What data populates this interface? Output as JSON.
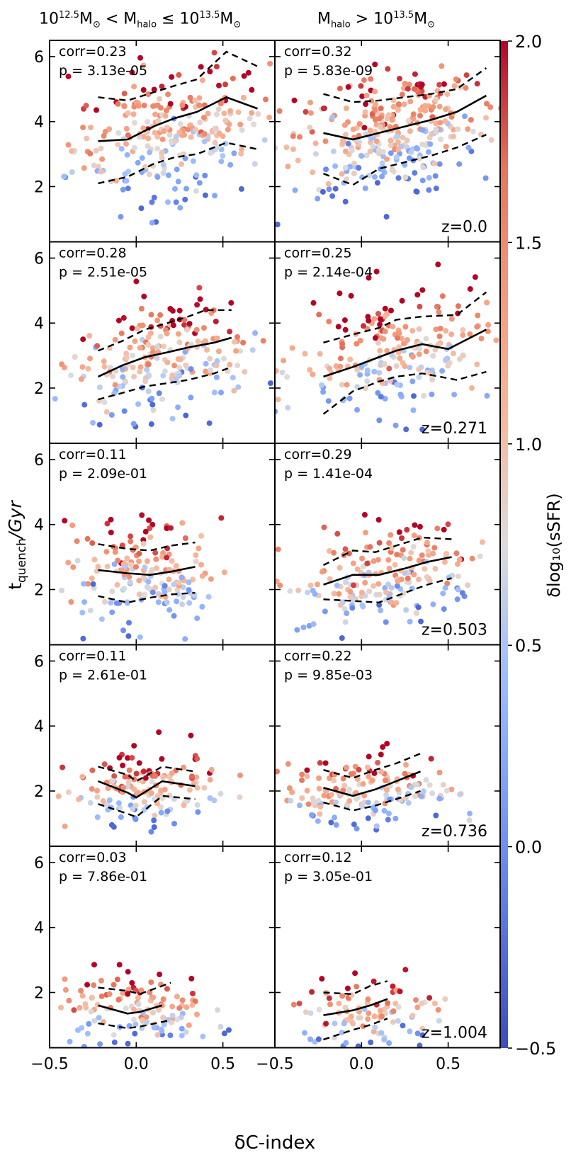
{
  "figure": {
    "column_titles": [
      {
        "pre": "10",
        "sup1": "12.5",
        "mid1": "M",
        "sub1": "⊙",
        "mid2": " < M",
        "sub2": "halo",
        "mid3": " ≤ 10",
        "sup2": "13.5",
        "mid4": "M",
        "sub3": "⊙"
      },
      {
        "pre": "M",
        "sub1": "halo",
        "mid1": " > 10",
        "sup1": "13.5",
        "mid2": "M",
        "sub2": "⊙"
      }
    ],
    "xlabel": "δC-index",
    "ylabel_main": "t",
    "ylabel_sub": "quench",
    "ylabel_tail": "/Gyr",
    "colorbar_label": "δlog₁₀(sSFR)"
  },
  "chart_data": {
    "type": "scatter",
    "layout": "5 rows x 2 columns",
    "xlim": [
      -0.5,
      0.8
    ],
    "ylim": [
      0.3,
      6.5
    ],
    "xticks": [
      -0.5,
      0.0,
      0.5
    ],
    "xtick_labels": [
      "−0.5",
      "0.0",
      "0.5"
    ],
    "yticks": [
      2,
      4,
      6
    ],
    "ytick_labels": [
      "2",
      "4",
      "6"
    ],
    "colorbar": {
      "cmap": "coolwarm",
      "min": -0.5,
      "max": 2.0,
      "ticks": [
        -0.5,
        0.0,
        0.5,
        1.0,
        1.5,
        2.0
      ],
      "tick_labels": [
        "−0.5",
        "0.0",
        "0.5",
        "1.0",
        "1.5",
        "2.0"
      ]
    },
    "panels": [
      {
        "row": 0,
        "col": 0,
        "corr": "corr=0.23",
        "p": "p = 3.13e-05",
        "z": "",
        "n": 260,
        "xc": 0.2,
        "xs": 0.28,
        "slope": 1.1,
        "y0": 3.6,
        "ys": 1.0,
        "median": [
          [
            -0.22,
            3.4
          ],
          [
            -0.05,
            3.45
          ],
          [
            0.1,
            3.85
          ],
          [
            0.22,
            4.1
          ],
          [
            0.35,
            4.3
          ],
          [
            0.52,
            4.75
          ],
          [
            0.7,
            4.4
          ]
        ],
        "upper": [
          [
            -0.22,
            4.75
          ],
          [
            -0.05,
            4.65
          ],
          [
            0.1,
            4.9
          ],
          [
            0.22,
            5.1
          ],
          [
            0.35,
            5.3
          ],
          [
            0.52,
            6.15
          ],
          [
            0.7,
            5.7
          ]
        ],
        "lower": [
          [
            -0.22,
            2.1
          ],
          [
            -0.05,
            2.3
          ],
          [
            0.1,
            2.7
          ],
          [
            0.22,
            2.9
          ],
          [
            0.35,
            3.0
          ],
          [
            0.52,
            3.35
          ],
          [
            0.7,
            3.15
          ]
        ]
      },
      {
        "row": 0,
        "col": 1,
        "corr": "corr=0.32",
        "p": "p = 5.83e-09",
        "z": "z=0.0",
        "n": 320,
        "xc": 0.15,
        "xs": 0.28,
        "slope": 1.3,
        "y0": 3.7,
        "ys": 0.9,
        "median": [
          [
            -0.22,
            3.65
          ],
          [
            -0.05,
            3.45
          ],
          [
            0.1,
            3.65
          ],
          [
            0.25,
            3.85
          ],
          [
            0.4,
            4.05
          ],
          [
            0.55,
            4.3
          ],
          [
            0.72,
            4.8
          ]
        ],
        "upper": [
          [
            -0.22,
            4.85
          ],
          [
            -0.05,
            4.6
          ],
          [
            0.1,
            4.65
          ],
          [
            0.25,
            4.75
          ],
          [
            0.4,
            4.85
          ],
          [
            0.55,
            5.0
          ],
          [
            0.72,
            5.65
          ]
        ],
        "lower": [
          [
            -0.22,
            2.4
          ],
          [
            -0.05,
            2.05
          ],
          [
            0.1,
            2.55
          ],
          [
            0.25,
            2.75
          ],
          [
            0.4,
            2.95
          ],
          [
            0.55,
            3.2
          ],
          [
            0.72,
            3.6
          ]
        ]
      },
      {
        "row": 1,
        "col": 0,
        "corr": "corr=0.28",
        "p": "p = 2.51e-05",
        "z": "",
        "n": 220,
        "xc": 0.15,
        "xs": 0.26,
        "slope": 0.9,
        "y0": 2.9,
        "ys": 0.9,
        "median": [
          [
            -0.22,
            2.35
          ],
          [
            -0.08,
            2.7
          ],
          [
            0.05,
            2.95
          ],
          [
            0.18,
            3.1
          ],
          [
            0.3,
            3.25
          ],
          [
            0.45,
            3.4
          ],
          [
            0.55,
            3.55
          ]
        ],
        "upper": [
          [
            -0.22,
            3.15
          ],
          [
            -0.08,
            3.45
          ],
          [
            0.05,
            3.8
          ],
          [
            0.18,
            4.0
          ],
          [
            0.3,
            4.2
          ],
          [
            0.4,
            4.4
          ],
          [
            0.55,
            4.4
          ]
        ],
        "lower": [
          [
            -0.22,
            1.65
          ],
          [
            -0.08,
            1.85
          ],
          [
            0.05,
            2.05
          ],
          [
            0.18,
            2.15
          ],
          [
            0.3,
            2.25
          ],
          [
            0.45,
            2.45
          ],
          [
            0.55,
            2.65
          ]
        ]
      },
      {
        "row": 1,
        "col": 1,
        "corr": "corr=0.25",
        "p": "p = 2.14e-04",
        "z": "z=0.271",
        "n": 220,
        "xc": 0.2,
        "xs": 0.28,
        "slope": 1.1,
        "y0": 3.0,
        "ys": 0.9,
        "median": [
          [
            -0.22,
            2.35
          ],
          [
            -0.05,
            2.65
          ],
          [
            0.1,
            2.95
          ],
          [
            0.2,
            3.15
          ],
          [
            0.35,
            3.35
          ],
          [
            0.5,
            3.2
          ],
          [
            0.72,
            3.8
          ]
        ],
        "upper": [
          [
            -0.22,
            3.4
          ],
          [
            -0.05,
            3.65
          ],
          [
            0.1,
            3.85
          ],
          [
            0.2,
            4.1
          ],
          [
            0.35,
            4.2
          ],
          [
            0.55,
            4.25
          ],
          [
            0.72,
            4.95
          ]
        ],
        "lower": [
          [
            -0.22,
            1.2
          ],
          [
            -0.05,
            1.9
          ],
          [
            0.1,
            2.2
          ],
          [
            0.2,
            2.35
          ],
          [
            0.35,
            2.45
          ],
          [
            0.55,
            2.25
          ],
          [
            0.72,
            2.5
          ]
        ]
      },
      {
        "row": 2,
        "col": 0,
        "corr": "corr=0.11",
        "p": "p = 2.09e-01",
        "z": "",
        "n": 170,
        "xc": 0.05,
        "xs": 0.22,
        "slope": 0.3,
        "y0": 2.5,
        "ys": 0.8,
        "median": [
          [
            -0.22,
            2.6
          ],
          [
            -0.05,
            2.5
          ],
          [
            0.08,
            2.45
          ],
          [
            0.2,
            2.55
          ],
          [
            0.34,
            2.7
          ]
        ],
        "upper": [
          [
            -0.22,
            3.4
          ],
          [
            -0.05,
            3.25
          ],
          [
            0.08,
            3.2
          ],
          [
            0.2,
            3.35
          ],
          [
            0.34,
            3.45
          ]
        ],
        "lower": [
          [
            -0.22,
            1.8
          ],
          [
            -0.05,
            1.6
          ],
          [
            0.08,
            1.75
          ],
          [
            0.2,
            1.85
          ],
          [
            0.34,
            1.9
          ]
        ]
      },
      {
        "row": 2,
        "col": 1,
        "corr": "corr=0.29",
        "p": "p = 1.41e-04",
        "z": "z=0.503",
        "n": 190,
        "xc": 0.15,
        "xs": 0.26,
        "slope": 0.9,
        "y0": 2.4,
        "ys": 0.8,
        "median": [
          [
            -0.22,
            2.15
          ],
          [
            -0.05,
            2.45
          ],
          [
            0.1,
            2.45
          ],
          [
            0.25,
            2.65
          ],
          [
            0.38,
            2.85
          ],
          [
            0.52,
            3.0
          ]
        ],
        "upper": [
          [
            -0.22,
            2.75
          ],
          [
            -0.05,
            3.2
          ],
          [
            0.08,
            3.15
          ],
          [
            0.2,
            3.35
          ],
          [
            0.35,
            3.6
          ],
          [
            0.52,
            3.55
          ]
        ],
        "lower": [
          [
            -0.22,
            1.7
          ],
          [
            -0.05,
            1.65
          ],
          [
            0.1,
            1.6
          ],
          [
            0.25,
            1.9
          ],
          [
            0.38,
            2.15
          ],
          [
            0.52,
            2.35
          ]
        ]
      },
      {
        "row": 3,
        "col": 0,
        "corr": "corr=0.11",
        "p": "p = 2.61e-01",
        "z": "",
        "n": 150,
        "xc": 0.05,
        "xs": 0.22,
        "slope": 0.3,
        "y0": 2.0,
        "ys": 0.5,
        "median": [
          [
            -0.22,
            2.3
          ],
          [
            -0.05,
            1.95
          ],
          [
            0.0,
            1.8
          ],
          [
            0.15,
            2.3
          ],
          [
            0.34,
            2.15
          ]
        ],
        "upper": [
          [
            -0.22,
            2.75
          ],
          [
            -0.05,
            2.5
          ],
          [
            0.0,
            2.3
          ],
          [
            0.15,
            2.75
          ],
          [
            0.34,
            2.6
          ]
        ],
        "lower": [
          [
            -0.22,
            1.6
          ],
          [
            -0.05,
            1.3
          ],
          [
            0.0,
            1.2
          ],
          [
            0.15,
            1.85
          ],
          [
            0.34,
            1.75
          ]
        ]
      },
      {
        "row": 3,
        "col": 1,
        "corr": "corr=0.22",
        "p": "p = 9.85e-03",
        "z": "z=0.736",
        "n": 160,
        "xc": 0.05,
        "xs": 0.24,
        "slope": 0.6,
        "y0": 2.0,
        "ys": 0.55,
        "median": [
          [
            -0.22,
            2.1
          ],
          [
            -0.05,
            1.85
          ],
          [
            0.08,
            2.05
          ],
          [
            0.2,
            2.3
          ],
          [
            0.34,
            2.6
          ]
        ],
        "upper": [
          [
            -0.22,
            2.65
          ],
          [
            -0.05,
            2.4
          ],
          [
            0.08,
            2.65
          ],
          [
            0.2,
            2.85
          ],
          [
            0.34,
            3.15
          ]
        ],
        "lower": [
          [
            -0.22,
            1.65
          ],
          [
            -0.05,
            1.4
          ],
          [
            0.08,
            1.55
          ],
          [
            0.2,
            1.75
          ],
          [
            0.34,
            2.0
          ]
        ]
      },
      {
        "row": 4,
        "col": 0,
        "corr": "corr=0.03",
        "p": "p = 7.86e-01",
        "z": "",
        "n": 130,
        "xc": 0.0,
        "xs": 0.22,
        "slope": 0.0,
        "y0": 1.5,
        "ys": 0.55,
        "median": [
          [
            -0.22,
            1.6
          ],
          [
            -0.05,
            1.35
          ],
          [
            0.02,
            1.4
          ],
          [
            0.15,
            1.6
          ]
        ],
        "upper": [
          [
            -0.22,
            2.15
          ],
          [
            -0.05,
            2.05
          ],
          [
            0.02,
            1.95
          ],
          [
            0.2,
            2.3
          ]
        ],
        "lower": [
          [
            -0.22,
            1.05
          ],
          [
            -0.05,
            0.9
          ],
          [
            0.02,
            0.95
          ],
          [
            0.2,
            1.15
          ]
        ]
      },
      {
        "row": 4,
        "col": 1,
        "corr": "corr=0.12",
        "p": "p = 3.05e-01",
        "z": "z=1.004",
        "n": 100,
        "xc": 0.05,
        "xs": 0.25,
        "slope": 0.3,
        "y0": 1.3,
        "ys": 0.5,
        "median": [
          [
            -0.22,
            1.3
          ],
          [
            -0.05,
            1.45
          ],
          [
            0.05,
            1.6
          ],
          [
            0.15,
            1.8
          ]
        ],
        "upper": [
          [
            -0.22,
            2.0
          ],
          [
            -0.05,
            1.95
          ],
          [
            0.05,
            2.2
          ],
          [
            0.15,
            2.35
          ]
        ],
        "lower": [
          [
            -0.22,
            0.55
          ],
          [
            -0.05,
            0.85
          ],
          [
            0.05,
            1.0
          ],
          [
            0.15,
            1.2
          ]
        ]
      }
    ]
  }
}
